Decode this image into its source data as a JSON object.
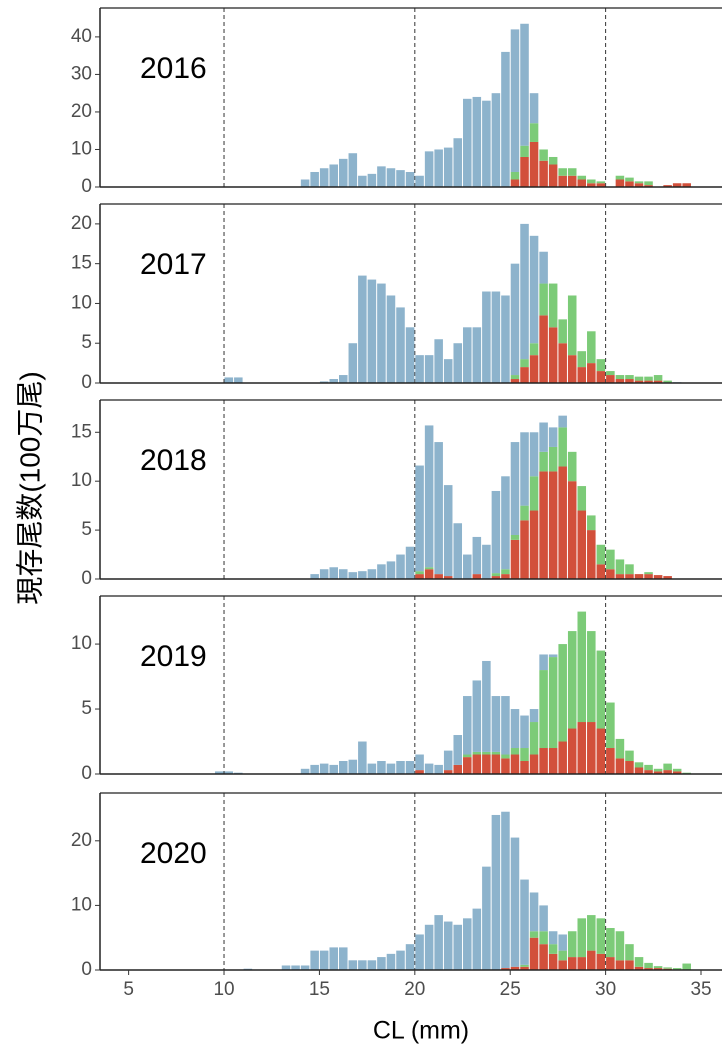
{
  "ylabel": "現存尾数(100万尾)",
  "chart_data": [
    {
      "type": "histogram",
      "title": "2016",
      "bins": [
        9.5,
        10,
        10.5,
        11,
        11.5,
        12,
        12.5,
        13,
        13.5,
        14,
        14.5,
        15,
        15.5,
        16,
        16.5,
        17,
        17.5,
        18,
        18.5,
        19,
        19.5,
        20,
        20.5,
        21,
        21.5,
        22,
        22.5,
        23,
        23.5,
        24,
        24.5,
        25,
        25.5,
        26,
        26.5,
        27,
        27.5,
        28,
        28.5,
        29,
        29.5,
        30,
        30.5,
        31,
        31.5,
        32,
        32.5,
        33,
        33.5,
        34,
        34.5
      ],
      "series": [
        {
          "color": "#d2503b",
          "values": [
            0,
            0,
            0,
            0,
            0,
            0,
            0,
            0,
            0,
            0,
            0,
            0,
            0,
            0,
            0,
            0,
            0,
            0,
            0,
            0,
            0,
            0,
            0,
            0,
            0,
            0,
            0,
            0,
            0,
            0,
            0,
            2,
            8,
            12,
            7,
            6,
            3,
            3,
            2,
            1,
            1,
            0,
            2,
            1.5,
            1,
            0.5,
            0,
            0.5,
            1,
            1
          ]
        },
        {
          "color": "#7ccb78",
          "values": [
            0,
            0,
            0,
            0,
            0,
            0,
            0,
            0,
            0,
            0,
            0,
            0,
            0,
            0,
            0,
            0,
            0,
            0,
            0,
            0,
            0,
            0,
            0,
            0,
            0,
            0,
            0,
            0,
            0,
            0,
            0,
            2,
            3,
            5,
            3,
            2,
            2,
            2,
            1,
            1,
            0.5,
            0,
            1,
            1,
            0.5,
            1,
            0,
            0,
            0,
            0
          ]
        },
        {
          "color": "#8db3cc",
          "values": [
            0,
            0,
            0,
            0,
            0,
            0,
            0,
            0,
            0,
            2,
            4,
            5,
            6,
            7.5,
            9,
            3,
            3.5,
            5.5,
            5,
            4.5,
            4,
            3,
            9.5,
            10,
            10.5,
            13,
            23.5,
            24,
            23,
            25,
            36,
            38,
            32.5,
            8,
            0,
            0,
            0,
            0,
            0,
            0,
            0,
            0,
            0,
            0,
            0,
            0,
            0,
            0,
            0,
            0
          ]
        }
      ],
      "xlim": [
        3.5,
        36.1
      ],
      "ylim": [
        0,
        47.7
      ],
      "yticks": [
        0,
        10,
        20,
        30,
        40
      ],
      "vlines": [
        10,
        20,
        30
      ]
    },
    {
      "type": "histogram",
      "title": "2017",
      "bins": [
        9.5,
        10,
        10.5,
        11,
        11.5,
        12,
        12.5,
        13,
        13.5,
        14,
        14.5,
        15,
        15.5,
        16,
        16.5,
        17,
        17.5,
        18,
        18.5,
        19,
        19.5,
        20,
        20.5,
        21,
        21.5,
        22,
        22.5,
        23,
        23.5,
        24,
        24.5,
        25,
        25.5,
        26,
        26.5,
        27,
        27.5,
        28,
        28.5,
        29,
        29.5,
        30,
        30.5,
        31,
        31.5,
        32,
        32.5,
        33,
        33.5,
        34,
        34.5
      ],
      "series": [
        {
          "color": "#d2503b",
          "values": [
            0,
            0,
            0,
            0,
            0,
            0,
            0,
            0,
            0,
            0,
            0,
            0,
            0,
            0,
            0,
            0,
            0,
            0,
            0,
            0,
            0,
            0,
            0,
            0,
            0,
            0,
            0,
            0,
            0,
            0,
            0,
            0.5,
            2,
            3.5,
            8.5,
            7,
            5,
            3.5,
            2,
            2.5,
            1.5,
            1,
            0.5,
            0.5,
            0.3,
            0.3,
            0.3,
            0,
            0,
            0
          ]
        },
        {
          "color": "#7ccb78",
          "values": [
            0,
            0,
            0,
            0,
            0,
            0,
            0,
            0,
            0,
            0,
            0,
            0,
            0,
            0,
            0,
            0,
            0,
            0,
            0,
            0,
            0,
            0,
            0,
            0,
            0,
            0,
            0,
            0,
            0,
            0,
            0,
            0.5,
            1,
            1.5,
            4,
            5.5,
            3,
            7.5,
            2,
            4,
            1.5,
            0.5,
            0.5,
            0.5,
            0.5,
            0.5,
            0.7,
            0.3,
            0,
            0
          ]
        },
        {
          "color": "#8db3cc",
          "values": [
            0,
            0.7,
            0.7,
            0,
            0,
            0,
            0,
            0,
            0,
            0,
            0,
            0.2,
            0.5,
            1,
            5,
            13.5,
            13,
            12.5,
            11,
            9.5,
            7,
            3.5,
            3.5,
            5.5,
            3,
            5,
            7,
            7,
            11.5,
            11.5,
            11,
            14,
            17,
            13.5,
            4,
            0,
            0,
            0,
            0,
            0,
            0,
            0,
            0,
            0,
            0,
            0,
            0,
            0,
            0.1,
            0
          ]
        }
      ],
      "xlim": [
        3.5,
        36.1
      ],
      "ylim": [
        0,
        22.5
      ],
      "yticks": [
        0,
        5,
        10,
        15,
        20
      ],
      "vlines": [
        10,
        20,
        30
      ]
    },
    {
      "type": "histogram",
      "title": "2018",
      "bins": [
        9.5,
        10,
        10.5,
        11,
        11.5,
        12,
        12.5,
        13,
        13.5,
        14,
        14.5,
        15,
        15.5,
        16,
        16.5,
        17,
        17.5,
        18,
        18.5,
        19,
        19.5,
        20,
        20.5,
        21,
        21.5,
        22,
        22.5,
        23,
        23.5,
        24,
        24.5,
        25,
        25.5,
        26,
        26.5,
        27,
        27.5,
        28,
        28.5,
        29,
        29.5,
        30,
        30.5,
        31,
        31.5,
        32,
        32.5,
        33,
        33.5,
        34,
        34.5
      ],
      "series": [
        {
          "color": "#d2503b",
          "values": [
            0,
            0,
            0,
            0,
            0,
            0,
            0,
            0,
            0,
            0,
            0,
            0,
            0,
            0,
            0,
            0,
            0,
            0,
            0,
            0,
            0,
            0.5,
            1,
            0.5,
            0.3,
            0,
            0,
            0.5,
            0,
            0.3,
            0.5,
            4,
            6,
            7,
            11,
            11,
            11.5,
            10,
            7,
            5,
            1.5,
            1,
            0.5,
            0.5,
            0.5,
            0.5,
            0.4,
            0.3,
            0,
            0
          ]
        },
        {
          "color": "#7ccb78",
          "values": [
            0,
            0,
            0,
            0,
            0,
            0,
            0,
            0,
            0,
            0,
            0,
            0,
            0,
            0,
            0,
            0,
            0,
            0,
            0,
            0,
            0,
            0.3,
            0.2,
            0,
            0,
            0,
            0,
            0,
            0,
            0.3,
            0.5,
            0.5,
            1.5,
            3.5,
            2,
            2.5,
            4,
            3,
            2.5,
            1.5,
            2,
            2,
            1.5,
            1,
            0,
            0.2,
            0,
            0,
            0,
            0
          ]
        },
        {
          "color": "#8db3cc",
          "values": [
            0,
            0,
            0,
            0,
            0,
            0,
            0,
            0,
            0,
            0,
            0.5,
            1,
            1.2,
            1,
            0.7,
            0.8,
            1,
            1.5,
            1.8,
            2.5,
            3.3,
            10.8,
            14.5,
            13.5,
            9.3,
            5.7,
            2.5,
            3.8,
            3.5,
            8.4,
            9.5,
            9.5,
            7.5,
            4.5,
            3,
            2,
            1.2,
            0,
            0,
            0,
            0,
            0,
            0,
            0,
            0,
            0,
            0,
            0,
            0,
            0
          ]
        }
      ],
      "xlim": [
        3.5,
        36.1
      ],
      "ylim": [
        0,
        18.3
      ],
      "yticks": [
        0,
        5,
        10,
        15
      ],
      "vlines": [
        10,
        20,
        30
      ]
    },
    {
      "type": "histogram",
      "title": "2019",
      "bins": [
        9.5,
        10,
        10.5,
        11,
        11.5,
        12,
        12.5,
        13,
        13.5,
        14,
        14.5,
        15,
        15.5,
        16,
        16.5,
        17,
        17.5,
        18,
        18.5,
        19,
        19.5,
        20,
        20.5,
        21,
        21.5,
        22,
        22.5,
        23,
        23.5,
        24,
        24.5,
        25,
        25.5,
        26,
        26.5,
        27,
        27.5,
        28,
        28.5,
        29,
        29.5,
        30,
        30.5,
        31,
        31.5,
        32,
        32.5,
        33,
        33.5,
        34,
        34.5
      ],
      "series": [
        {
          "color": "#d2503b",
          "values": [
            0,
            0,
            0,
            0,
            0,
            0,
            0,
            0,
            0,
            0,
            0,
            0,
            0,
            0,
            0,
            0,
            0,
            0,
            0,
            0,
            0,
            0.3,
            0,
            0,
            0.3,
            0.7,
            1.3,
            1.5,
            1.5,
            1.5,
            1.2,
            1.5,
            1,
            1.5,
            2,
            2,
            2.5,
            3.5,
            4,
            4,
            3.5,
            2,
            1.2,
            1,
            0.5,
            0.3,
            0.2,
            0.3,
            0.2,
            0
          ]
        },
        {
          "color": "#7ccb78",
          "values": [
            0,
            0,
            0,
            0,
            0,
            0,
            0,
            0,
            0,
            0,
            0,
            0,
            0,
            0,
            0,
            0,
            0,
            0,
            0,
            0,
            0,
            0,
            0,
            0,
            0,
            0,
            0.2,
            0.2,
            0.2,
            0.2,
            0.3,
            0.5,
            1,
            2.5,
            6,
            7,
            7.5,
            7.5,
            8.5,
            7,
            6,
            3.5,
            1.5,
            0.8,
            0.4,
            0.4,
            0.2,
            0.5,
            0.2,
            0.1
          ]
        },
        {
          "color": "#8db3cc",
          "values": [
            0.2,
            0.2,
            0.1,
            0,
            0,
            0,
            0,
            0,
            0,
            0.4,
            0.7,
            0.8,
            0.7,
            1,
            1.1,
            2.5,
            0.8,
            1,
            0.8,
            1,
            1,
            1.2,
            0.8,
            0.7,
            1.5,
            2.3,
            4.5,
            5.5,
            7,
            4.3,
            4.5,
            3,
            2.5,
            1,
            1.2,
            0.2,
            0,
            0,
            0,
            0,
            0,
            0,
            0,
            0,
            0,
            0,
            0,
            0,
            0,
            0
          ]
        }
      ],
      "xlim": [
        3.5,
        36.1
      ],
      "ylim": [
        0,
        13.7
      ],
      "yticks": [
        0,
        5,
        10
      ],
      "vlines": [
        10,
        20,
        30
      ]
    },
    {
      "type": "histogram",
      "title": "2020",
      "bins": [
        9.5,
        10,
        10.5,
        11,
        11.5,
        12,
        12.5,
        13,
        13.5,
        14,
        14.5,
        15,
        15.5,
        16,
        16.5,
        17,
        17.5,
        18,
        18.5,
        19,
        19.5,
        20,
        20.5,
        21,
        21.5,
        22,
        22.5,
        23,
        23.5,
        24,
        24.5,
        25,
        25.5,
        26,
        26.5,
        27,
        27.5,
        28,
        28.5,
        29,
        29.5,
        30,
        30.5,
        31,
        31.5,
        32,
        32.5,
        33,
        33.5,
        34,
        34.5
      ],
      "series": [
        {
          "color": "#d2503b",
          "values": [
            0,
            0,
            0,
            0,
            0,
            0,
            0,
            0,
            0,
            0,
            0,
            0,
            0,
            0,
            0,
            0,
            0,
            0,
            0,
            0,
            0,
            0,
            0,
            0,
            0,
            0,
            0,
            0,
            0,
            0,
            0.3,
            0.5,
            0.5,
            5,
            4,
            2.5,
            1.5,
            2,
            2,
            3,
            2.5,
            2,
            1.5,
            1.5,
            0.5,
            0.3,
            0.3,
            0.2,
            0,
            0
          ]
        },
        {
          "color": "#7ccb78",
          "values": [
            0,
            0,
            0,
            0,
            0,
            0,
            0,
            0,
            0,
            0,
            0,
            0,
            0,
            0,
            0,
            0,
            0,
            0,
            0,
            0,
            0,
            0,
            0,
            0,
            0,
            0,
            0,
            0,
            0,
            0,
            0,
            0,
            0.3,
            1,
            2,
            1.5,
            1.5,
            4,
            6,
            5.5,
            5.5,
            4.5,
            4.5,
            2.5,
            1.5,
            0.8,
            0.3,
            0.2,
            0.3,
            1
          ]
        },
        {
          "color": "#8db3cc",
          "values": [
            0,
            0,
            0,
            0.2,
            0,
            0,
            0,
            0.7,
            0.7,
            0.7,
            3,
            3,
            3.5,
            3.5,
            1.5,
            1.5,
            1.5,
            2,
            2.5,
            3,
            4,
            5.5,
            7,
            8.5,
            7.5,
            7,
            8,
            9.5,
            16,
            24,
            24.2,
            20,
            13.2,
            6,
            4,
            2,
            2.5,
            0,
            0,
            0,
            0,
            0,
            0,
            0,
            0,
            0,
            0,
            0,
            0,
            0
          ]
        }
      ],
      "xlim": [
        3.5,
        36.1
      ],
      "ylim": [
        0,
        27.4
      ],
      "yticks": [
        0,
        10,
        20
      ],
      "vlines": [
        10,
        20,
        30
      ],
      "xticks": [
        5,
        10,
        15,
        20,
        25,
        30,
        35
      ],
      "xlabel": "CL (mm)"
    }
  ]
}
